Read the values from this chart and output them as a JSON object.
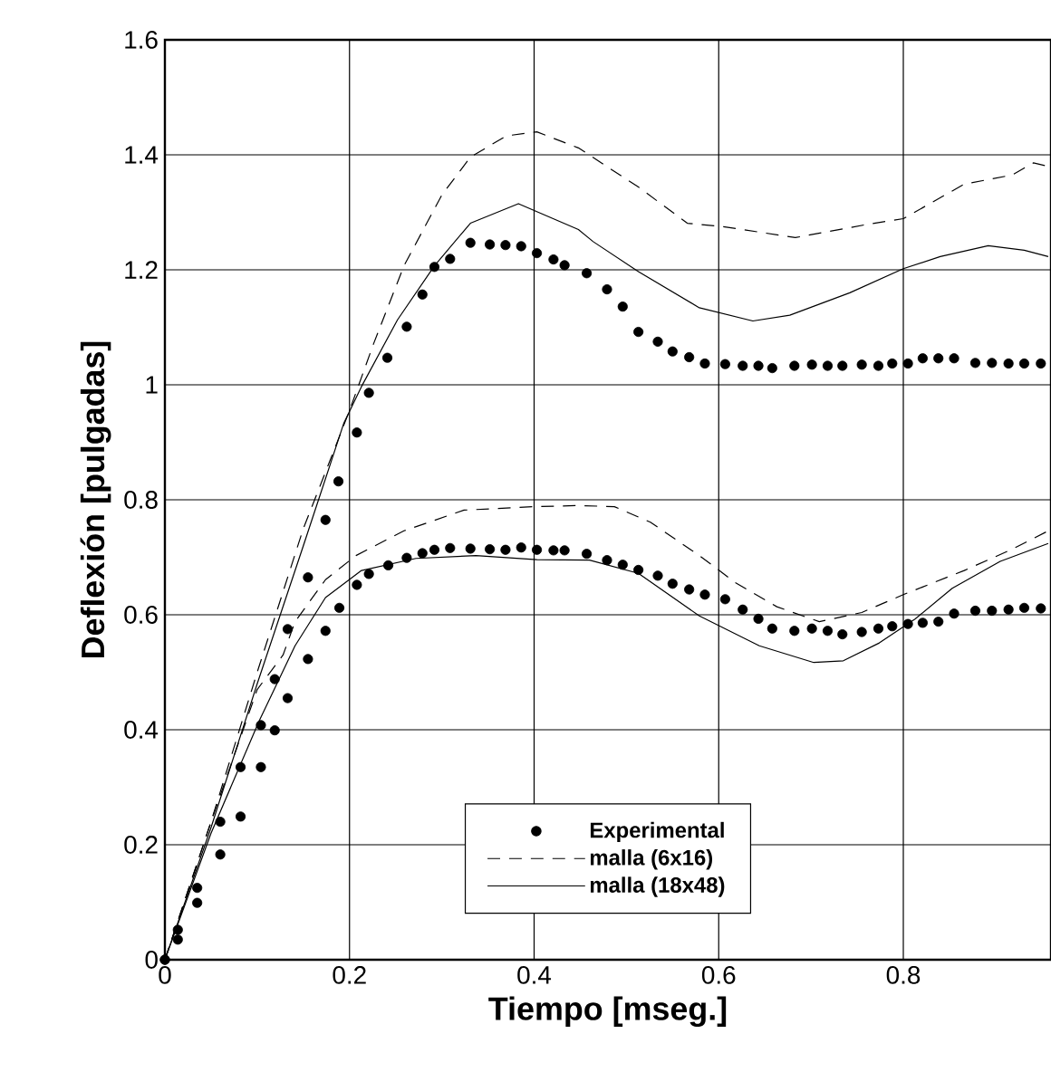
{
  "chart_data": {
    "type": "line",
    "xlabel": "Tiempo [mseg.]",
    "ylabel": "Deflexión [pulgadas]",
    "xlim": [
      0,
      0.96
    ],
    "ylim": [
      0,
      1.6
    ],
    "xticks": [
      0,
      0.2,
      0.4,
      0.6,
      0.8
    ],
    "yticks": [
      0,
      0.2,
      0.4,
      0.6,
      0.8,
      1,
      1.2,
      1.4,
      1.6
    ],
    "grid": true,
    "legend": "bottom",
    "series": [
      {
        "name": "Experimental",
        "type": "scatter",
        "marker": "circle",
        "color": "#000000",
        "x": [
          0,
          0.014,
          0.035,
          0.06,
          0.082,
          0.104,
          0.119,
          0.133,
          0.155,
          0.174,
          0.188,
          0.208,
          0.221,
          0.241,
          0.262,
          0.279,
          0.292,
          0.309,
          0.331,
          0.352,
          0.369,
          0.386,
          0.403,
          0.421,
          0.433,
          0.457,
          0.479,
          0.496,
          0.513,
          0.534,
          0.55,
          0.568,
          0.585,
          0.607,
          0.626,
          0.643,
          0.658,
          0.682,
          0.701,
          0.718,
          0.734,
          0.755,
          0.773,
          0.788,
          0.805,
          0.821,
          0.838,
          0.855,
          0.878,
          0.896,
          0.914,
          0.931,
          0.949
        ],
        "values": [
          0,
          0.052,
          0.125,
          0.24,
          0.335,
          0.408,
          0.488,
          0.575,
          0.665,
          0.765,
          0.832,
          0.917,
          0.986,
          1.047,
          1.101,
          1.157,
          1.205,
          1.219,
          1.247,
          1.244,
          1.243,
          1.241,
          1.229,
          1.218,
          1.208,
          1.194,
          1.166,
          1.136,
          1.092,
          1.075,
          1.058,
          1.048,
          1.037,
          1.036,
          1.033,
          1.033,
          1.029,
          1.033,
          1.035,
          1.033,
          1.033,
          1.035,
          1.033,
          1.037,
          1.037,
          1.046,
          1.046,
          1.046,
          1.038,
          1.038,
          1.037,
          1.037,
          1.037
        ]
      },
      {
        "name": "malla (6x16)",
        "line_style": "dashed",
        "color": "#000000",
        "x": [
          0,
          0.05,
          0.1,
          0.15,
          0.2,
          0.226,
          0.259,
          0.3,
          0.331,
          0.37,
          0.403,
          0.448,
          0.513,
          0.566,
          0.605,
          0.683,
          0.761,
          0.8,
          0.866,
          0.918,
          0.941,
          0.957
        ],
        "values": [
          0,
          0.24,
          0.5,
          0.75,
          0.955,
          1.071,
          1.207,
          1.33,
          1.396,
          1.433,
          1.44,
          1.412,
          1.344,
          1.281,
          1.275,
          1.256,
          1.279,
          1.289,
          1.349,
          1.365,
          1.386,
          1.38
        ]
      },
      {
        "name": "malla (18x48)",
        "line_style": "solid",
        "color": "#000000",
        "x": [
          0,
          0.05,
          0.1,
          0.15,
          0.194,
          0.213,
          0.252,
          0.292,
          0.331,
          0.383,
          0.448,
          0.464,
          0.513,
          0.579,
          0.637,
          0.677,
          0.742,
          0.8,
          0.84,
          0.892,
          0.931,
          0.957
        ],
        "values": [
          0,
          0.23,
          0.48,
          0.72,
          0.934,
          0.997,
          1.113,
          1.207,
          1.281,
          1.315,
          1.27,
          1.249,
          1.197,
          1.134,
          1.111,
          1.121,
          1.16,
          1.202,
          1.223,
          1.242,
          1.234,
          1.223
        ]
      },
      {
        "type": "scatter",
        "marker": "circle",
        "color": "#000000",
        "x": [
          0,
          0.014,
          0.035,
          0.06,
          0.082,
          0.104,
          0.119,
          0.133,
          0.155,
          0.174,
          0.189,
          0.208,
          0.221,
          0.242,
          0.262,
          0.279,
          0.292,
          0.309,
          0.331,
          0.352,
          0.369,
          0.386,
          0.403,
          0.421,
          0.433,
          0.457,
          0.479,
          0.496,
          0.513,
          0.534,
          0.55,
          0.568,
          0.585,
          0.607,
          0.626,
          0.643,
          0.658,
          0.682,
          0.701,
          0.718,
          0.734,
          0.755,
          0.773,
          0.788,
          0.805,
          0.821,
          0.838,
          0.855,
          0.878,
          0.896,
          0.914,
          0.931,
          0.949
        ],
        "values": [
          0,
          0.035,
          0.099,
          0.183,
          0.249,
          0.335,
          0.399,
          0.455,
          0.523,
          0.572,
          0.612,
          0.652,
          0.671,
          0.686,
          0.699,
          0.707,
          0.713,
          0.716,
          0.715,
          0.714,
          0.713,
          0.717,
          0.713,
          0.712,
          0.712,
          0.706,
          0.695,
          0.687,
          0.678,
          0.668,
          0.654,
          0.644,
          0.635,
          0.627,
          0.609,
          0.593,
          0.576,
          0.572,
          0.576,
          0.572,
          0.566,
          0.57,
          0.576,
          0.58,
          0.584,
          0.586,
          0.588,
          0.602,
          0.607,
          0.607,
          0.609,
          0.612,
          0.611
        ]
      },
      {
        "line_style": "dashed",
        "color": "#000000",
        "x": [
          0,
          0.05,
          0.1,
          0.128,
          0.141,
          0.174,
          0.207,
          0.259,
          0.324,
          0.4,
          0.448,
          0.487,
          0.526,
          0.579,
          0.618,
          0.663,
          0.709,
          0.755,
          0.8,
          0.866,
          0.918,
          0.957
        ],
        "values": [
          0,
          0.24,
          0.47,
          0.53,
          0.588,
          0.661,
          0.703,
          0.746,
          0.782,
          0.788,
          0.79,
          0.788,
          0.761,
          0.703,
          0.656,
          0.614,
          0.588,
          0.604,
          0.635,
          0.677,
          0.714,
          0.746
        ]
      },
      {
        "line_style": "solid",
        "color": "#000000",
        "x": [
          0,
          0.05,
          0.102,
          0.141,
          0.174,
          0.213,
          0.272,
          0.337,
          0.403,
          0.46,
          0.513,
          0.579,
          0.644,
          0.703,
          0.735,
          0.774,
          0.813,
          0.853,
          0.905,
          0.957
        ],
        "values": [
          0,
          0.22,
          0.415,
          0.546,
          0.63,
          0.677,
          0.698,
          0.703,
          0.696,
          0.695,
          0.672,
          0.598,
          0.546,
          0.517,
          0.52,
          0.551,
          0.593,
          0.646,
          0.693,
          0.724
        ]
      }
    ]
  }
}
